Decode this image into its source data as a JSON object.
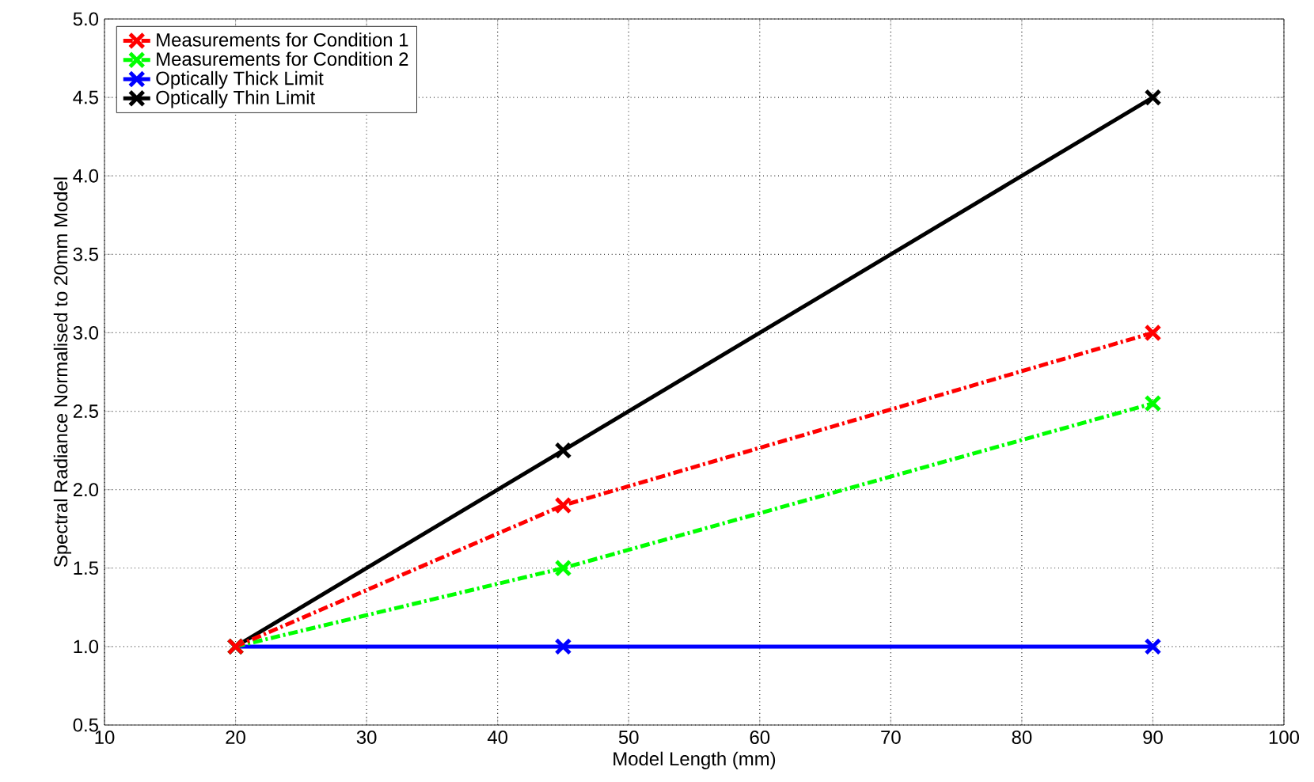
{
  "chart_data": {
    "type": "line",
    "xlabel": "Model Length (mm)",
    "ylabel": "Spectral Radiance Normalised to 20mm Model",
    "x": [
      20,
      45,
      90
    ],
    "series": [
      {
        "name": "Measurements for Condition 1",
        "color": "#ff0000",
        "values": [
          1.0,
          1.9,
          3.0
        ],
        "line_style": "dashdot"
      },
      {
        "name": "Measurements for Condition 2",
        "color": "#00ff00",
        "values": [
          1.0,
          1.5,
          2.55
        ],
        "line_style": "dashdot"
      },
      {
        "name": "Optically Thick Limit",
        "color": "#0000ff",
        "values": [
          1.0,
          1.0,
          1.0
        ],
        "line_style": "solid"
      },
      {
        "name": "Optically Thin Limit",
        "color": "#000000",
        "values": [
          1.0,
          2.25,
          4.5
        ],
        "line_style": "solid"
      }
    ],
    "xlim": [
      10,
      100
    ],
    "xticks": [
      10,
      20,
      30,
      40,
      50,
      60,
      70,
      80,
      90,
      100
    ],
    "ylim": [
      0.5,
      5.0
    ],
    "yticks": [
      0.5,
      {
        "value": 1,
        "label": "1.0"
      },
      1.5,
      {
        "value": 2,
        "label": "2.0"
      },
      2.5,
      {
        "value": 3,
        "label": "3.0"
      },
      3.5,
      {
        "value": 4,
        "label": "4.0"
      },
      4.5,
      {
        "value": 5,
        "label": "5.0"
      }
    ],
    "grid": true,
    "legend": "top left",
    "marker": "cross"
  }
}
